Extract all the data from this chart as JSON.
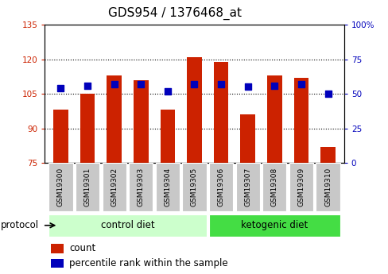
{
  "title": "GDS954 / 1376468_at",
  "samples": [
    "GSM19300",
    "GSM19301",
    "GSM19302",
    "GSM19303",
    "GSM19304",
    "GSM19305",
    "GSM19306",
    "GSM19307",
    "GSM19308",
    "GSM19309",
    "GSM19310"
  ],
  "counts": [
    98,
    105,
    113,
    111,
    98,
    121,
    119,
    96,
    113,
    112,
    82
  ],
  "percentile_ranks": [
    54,
    56,
    57,
    57,
    52,
    57,
    57,
    55,
    56,
    57,
    50
  ],
  "ylim_left": [
    75,
    135
  ],
  "ylim_right": [
    0,
    100
  ],
  "yticks_left": [
    75,
    90,
    105,
    120,
    135
  ],
  "yticks_right": [
    0,
    25,
    50,
    75,
    100
  ],
  "groups": [
    {
      "label": "control diet",
      "indices": [
        0,
        1,
        2,
        3,
        4,
        5
      ],
      "color": "#ccffcc"
    },
    {
      "label": "ketogenic diet",
      "indices": [
        6,
        7,
        8,
        9,
        10
      ],
      "color": "#44dd44"
    }
  ],
  "bar_color": "#cc2200",
  "blue_color": "#0000bb",
  "bar_width": 0.55,
  "grid_color": "#000000",
  "tick_bg_color": "#c8c8c8",
  "protocol_label": "protocol",
  "legend_count_label": "count",
  "legend_percentile_label": "percentile rank within the sample",
  "left_tick_color": "#cc2200",
  "right_tick_color": "#0000bb",
  "title_fontsize": 11,
  "tick_fontsize": 7.5,
  "sample_fontsize": 6.5,
  "group_fontsize": 8.5,
  "legend_fontsize": 8.5
}
